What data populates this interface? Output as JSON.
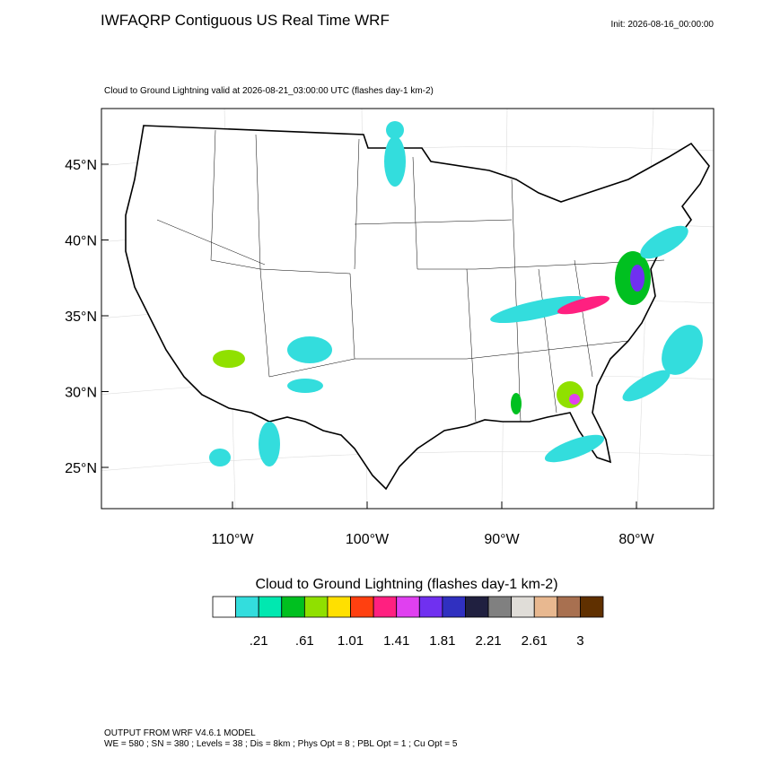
{
  "header": {
    "title": "IWFAQRP Contiguous US Real Time WRF",
    "init": "Init: 2026-08-16_00:00:00",
    "subtitle": "Cloud to Ground Lightning valid at 2026-08-21_03:00:00 UTC   (flashes day-1 km-2)"
  },
  "map": {
    "lat_labels": [
      "45°N",
      "40°N",
      "35°N",
      "30°N",
      "25°N"
    ],
    "lon_labels": [
      "110°W",
      "100°W",
      "90°W",
      "80°W"
    ]
  },
  "colorbar": {
    "title": "Cloud to Ground Lightning  (flashes day-1 km-2)",
    "colors": [
      "#ffffff",
      "#33dddd",
      "#00e8b0",
      "#00c020",
      "#90e000",
      "#ffe000",
      "#ff4010",
      "#ff2080",
      "#e040f0",
      "#7030f0",
      "#3030c0",
      "#202040",
      "#808080",
      "#e0ddd8",
      "#e8b890",
      "#a87050",
      "#603000"
    ],
    "labels": [
      ".21",
      ".61",
      "1.01",
      "1.41",
      "1.81",
      "2.21",
      "2.61",
      "3"
    ]
  },
  "footer": {
    "line1": "OUTPUT FROM WRF V4.6.1 MODEL",
    "line2": "WE = 580 ; SN = 380 ; Levels = 38 ; Dis = 8km ; Phys Opt = 8 ; PBL Opt = 1 ; Cu Opt = 5"
  }
}
